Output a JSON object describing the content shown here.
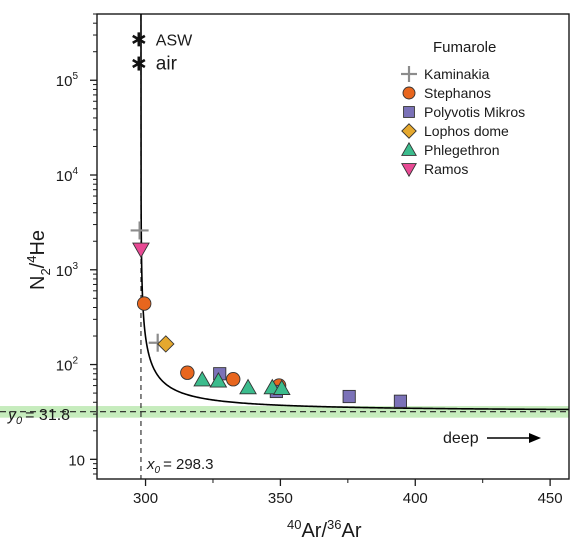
{
  "chart_data": {
    "type": "scatter",
    "xlabel": {
      "sup1": "40",
      "base1": "Ar/",
      "sup2": "36",
      "base2": "Ar"
    },
    "ylabel": {
      "base1": "N",
      "sub": "2",
      "base2": "/",
      "sup": "4",
      "base3": "He"
    },
    "xlim": [
      282,
      457
    ],
    "ylim": [
      6.2,
      500000
    ],
    "y_scale": "log",
    "x_ticks": [
      "300",
      "350",
      "400",
      "450"
    ],
    "x_tick_values": [
      300,
      350,
      400,
      450
    ],
    "x_minor_values": [
      325,
      375,
      425
    ],
    "y_ticks": [
      {
        "value": 10,
        "base": "10",
        "exp": ""
      },
      {
        "value": 100,
        "base": "10",
        "exp": "2"
      },
      {
        "value": 1000,
        "base": "10",
        "exp": "3"
      },
      {
        "value": 10000,
        "base": "10",
        "exp": "4"
      },
      {
        "value": 100000,
        "base": "10",
        "exp": "5"
      }
    ],
    "legend": {
      "title": "Fumarole",
      "position": "top-right"
    },
    "series": [
      {
        "name": "Kaminakia",
        "marker": "plus",
        "color": "#8c8c8c",
        "points": [
          [
            297.8,
            2600
          ],
          [
            304.5,
            170
          ]
        ]
      },
      {
        "name": "Stephanos",
        "marker": "circle",
        "color": "#e8661e",
        "points": [
          [
            299.5,
            440
          ],
          [
            315.5,
            82
          ],
          [
            332.5,
            70
          ],
          [
            349.5,
            60
          ]
        ]
      },
      {
        "name": "Polyvotis Mikros",
        "marker": "square",
        "color": "#7b72b8",
        "points": [
          [
            327.5,
            80
          ],
          [
            348.5,
            52
          ],
          [
            375.5,
            46
          ],
          [
            394.5,
            41
          ]
        ]
      },
      {
        "name": "Lophos dome",
        "marker": "diamond",
        "color": "#e5a82e",
        "points": [
          [
            307.5,
            165
          ]
        ]
      },
      {
        "name": "Phlegethron",
        "marker": "triangle-up",
        "color": "#3cbc8d",
        "points": [
          [
            321.0,
            69
          ],
          [
            327.0,
            67
          ],
          [
            338.0,
            57
          ],
          [
            347.0,
            57
          ],
          [
            350.5,
            56
          ]
        ]
      },
      {
        "name": "Ramos",
        "marker": "triangle-down",
        "color": "#e84a94",
        "points": [
          [
            298.3,
            1650
          ]
        ]
      }
    ],
    "reference_points": [
      {
        "label": "ASW",
        "x": 297.5,
        "y": 270000,
        "marker": "asterisk"
      },
      {
        "label": "air",
        "x": 297.5,
        "y": 150000,
        "marker": "asterisk"
      }
    ],
    "fit_curve": {
      "x0": 298.3,
      "y0": 31.8,
      "k": 280,
      "color": "#000000"
    },
    "asymptotes": {
      "x": {
        "value": 298.3,
        "label_var": "x",
        "label_sub": "0",
        "label_value": "= 298.3"
      },
      "y": {
        "value": 31.8,
        "label_var": "y",
        "label_sub": "0",
        "label_value": "= 31.8",
        "band": [
          27.5,
          36.5
        ],
        "band_color": "#c6ecbd"
      }
    },
    "annotation": {
      "text": "deep",
      "arrow": "right"
    }
  }
}
